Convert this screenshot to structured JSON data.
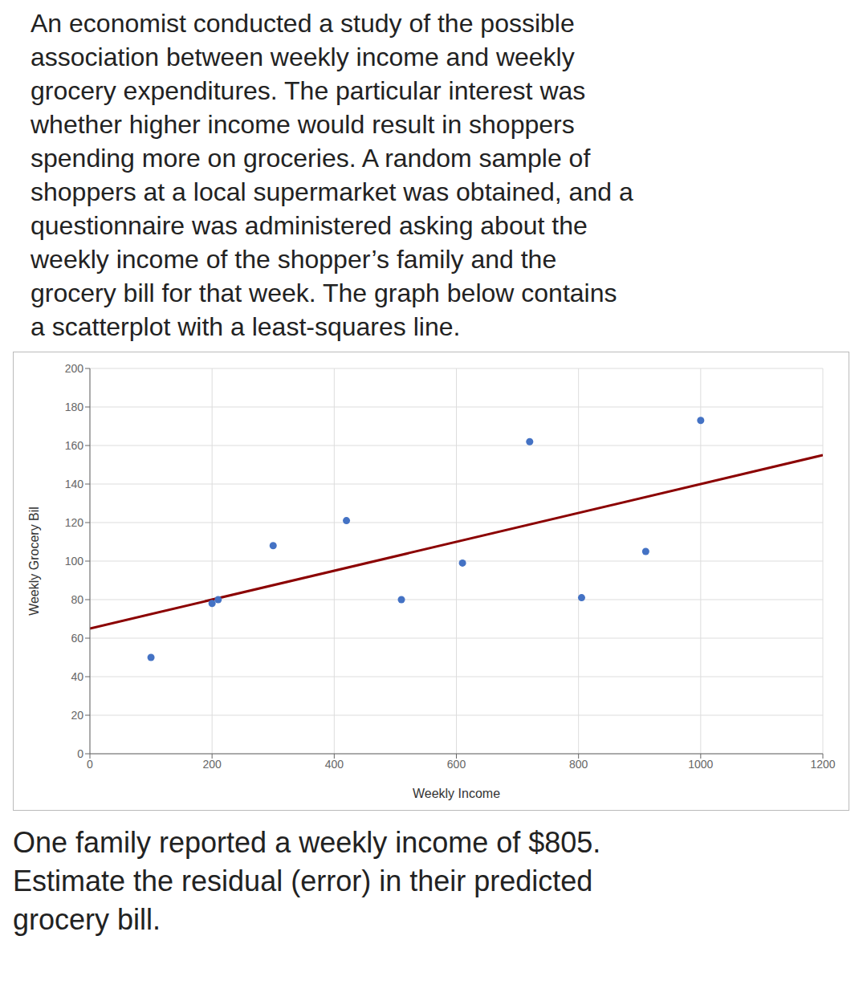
{
  "chart_data": {
    "type": "scatter",
    "subtitle": [
      "An economist conducted a study of the possible",
      "association between weekly income and weekly",
      "grocery expenditures. The particular interest was",
      "whether higher income would result in shoppers",
      "spending more on groceries. A random sample of",
      "shoppers at a local supermarket was obtained, and a",
      "questionnaire was administered asking about the",
      "weekly income of the shopper’s family and the",
      "grocery bill for that week. The graph below contains",
      "a scatterplot with a least-squares line."
    ],
    "annotations": [
      "One family reported a weekly income of $805.",
      "Estimate the residual (error) in their predicted",
      "grocery bill."
    ],
    "xlabel": "Weekly Income",
    "ylabel": "Weekly Grocery Bil",
    "x": [
      100,
      200,
      210,
      300,
      420,
      510,
      610,
      720,
      805,
      910,
      1000
    ],
    "series": [
      {
        "type": "scatter",
        "color": "#4472C4",
        "values": [
          50,
          78,
          80,
          108,
          121,
          80,
          99,
          162,
          81,
          105,
          173
        ]
      },
      {
        "type": "line",
        "color": "#8B0000",
        "x": [
          0,
          1200
        ],
        "values": [
          65,
          155
        ]
      }
    ],
    "xlim": [
      0,
      1200
    ],
    "ylim": [
      0,
      200
    ],
    "xticks": [
      0,
      200,
      400,
      600,
      800,
      1000,
      1200
    ],
    "yticks": [
      0,
      20,
      40,
      60,
      80,
      100,
      120,
      140,
      160,
      180,
      200
    ],
    "grid": true
  }
}
